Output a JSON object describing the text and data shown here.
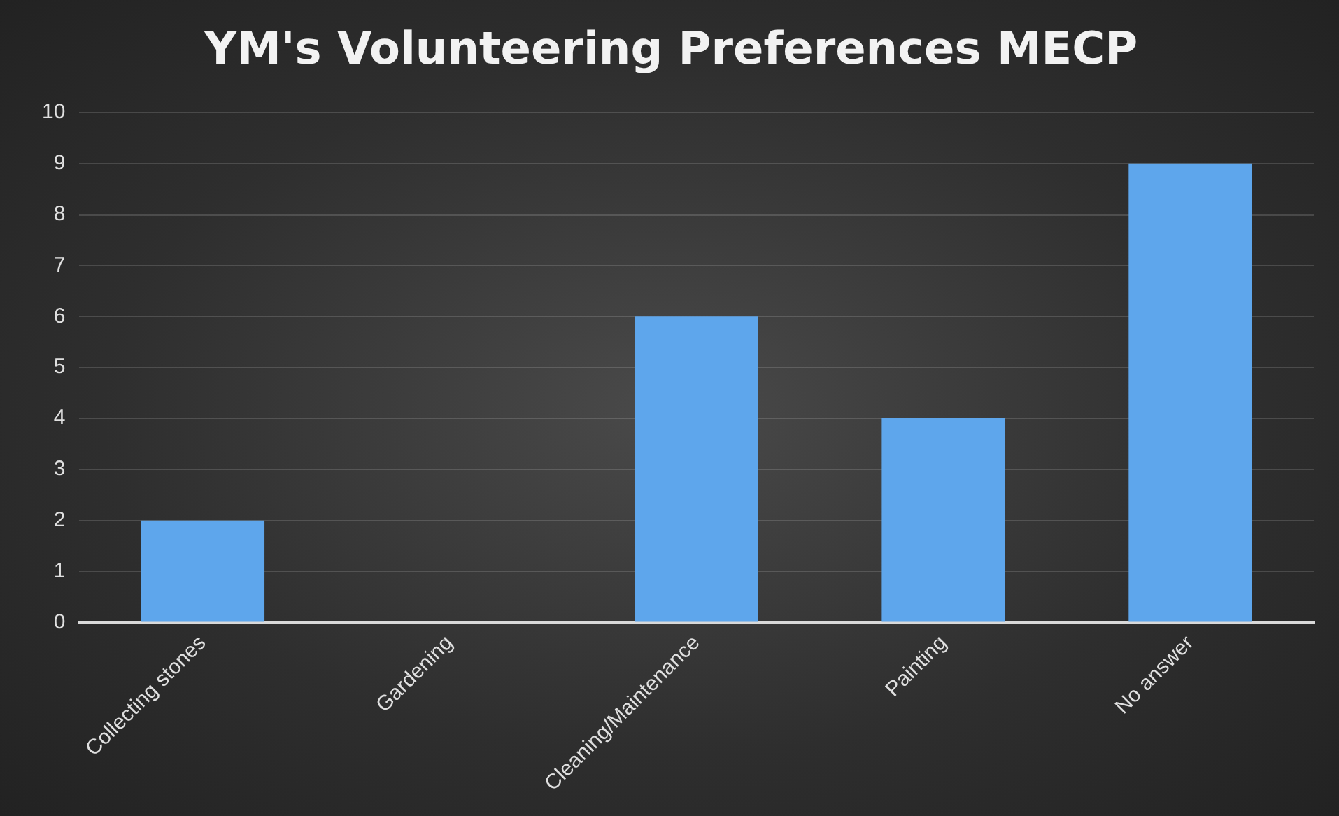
{
  "chart_data": {
    "type": "bar",
    "title": "YM's Volunteering Preferences MECP",
    "categories": [
      "Collecting stones",
      "Gardening",
      "Cleaning/Maintenance",
      "Painting",
      "No answer"
    ],
    "values": [
      2,
      0,
      6,
      4,
      9
    ],
    "color": "#5ea6ec",
    "ylim": [
      0,
      10
    ],
    "yticks": [
      0,
      1,
      2,
      3,
      4,
      5,
      6,
      7,
      8,
      9,
      10
    ],
    "grid": "y"
  }
}
